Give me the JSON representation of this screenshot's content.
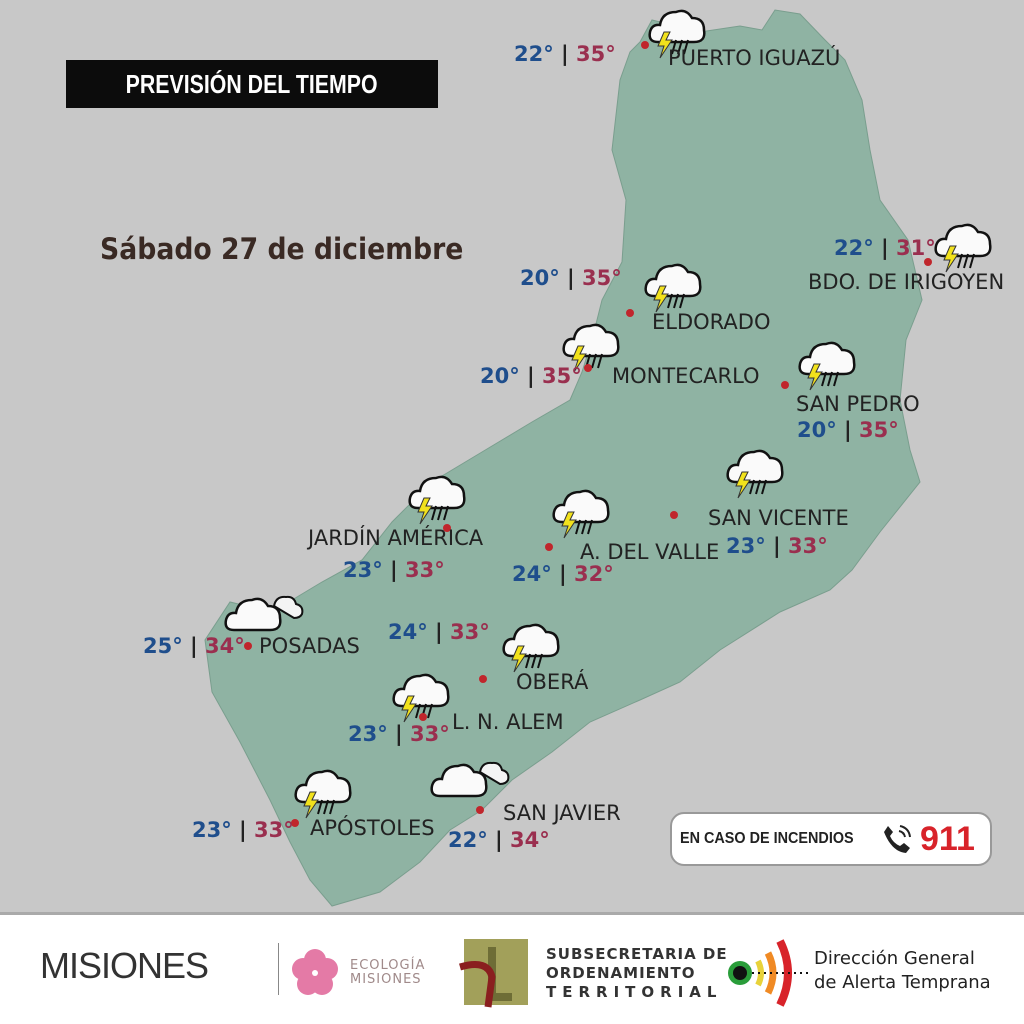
{
  "header": {
    "title": "PREVISIÓN DEL TIEMPO",
    "date": "Sábado 27 de diciembre"
  },
  "colors": {
    "background": "#c8c8c8",
    "map_fill": "#8fb3a3",
    "min_temp": "#1f4e8c",
    "max_temp": "#9a2f4f",
    "city_dot": "#c0262c"
  },
  "cities": [
    {
      "name": "PUERTO IGUAZÚ",
      "min": "22°",
      "max": "35°",
      "icon": "storm-icon"
    },
    {
      "name": "BDO. DE IRIGOYEN",
      "min": "22°",
      "max": "31°",
      "icon": "storm-icon"
    },
    {
      "name": "ELDORADO",
      "min": "20°",
      "max": "35°",
      "icon": "storm-icon"
    },
    {
      "name": "MONTECARLO",
      "min": "20°",
      "max": "35°",
      "icon": "storm-icon"
    },
    {
      "name": "SAN PEDRO",
      "min": "20°",
      "max": "35°",
      "icon": "storm-icon"
    },
    {
      "name": "SAN VICENTE",
      "min": "23°",
      "max": "33°",
      "icon": "storm-icon"
    },
    {
      "name": "A. DEL VALLE",
      "min": "24°",
      "max": "32°",
      "icon": "storm-icon"
    },
    {
      "name": "JARDÍN AMÉRICA",
      "min": "23°",
      "max": "33°",
      "icon": "storm-icon"
    },
    {
      "name": "POSADAS",
      "min": "25°",
      "max": "34°",
      "icon": "cloudy-icon"
    },
    {
      "name": "OBERÁ",
      "min": "24°",
      "max": "33°",
      "icon": "storm-icon"
    },
    {
      "name": "L. N. ALEM",
      "min": "23°",
      "max": "33°",
      "icon": "storm-icon"
    },
    {
      "name": "APÓSTOLES",
      "min": "23°",
      "max": "33°",
      "icon": "storm-icon"
    },
    {
      "name": "SAN JAVIER",
      "min": "22°",
      "max": "34°",
      "icon": "cloudy-icon"
    }
  ],
  "emergency": {
    "label": "EN CASO DE INCENDIOS",
    "number": "911",
    "icon": "phone-icon"
  },
  "footer": {
    "logo1": "MISIONES",
    "logo2_lines": [
      "ECOLOGÍA",
      "MISIONES"
    ],
    "logo3_lines": [
      "SUBSECRETARIA DE",
      "ORDENAMIENTO",
      "TERRITORIAL"
    ],
    "logo4_lines": [
      "Dirección General",
      "de Alerta Temprana"
    ]
  }
}
